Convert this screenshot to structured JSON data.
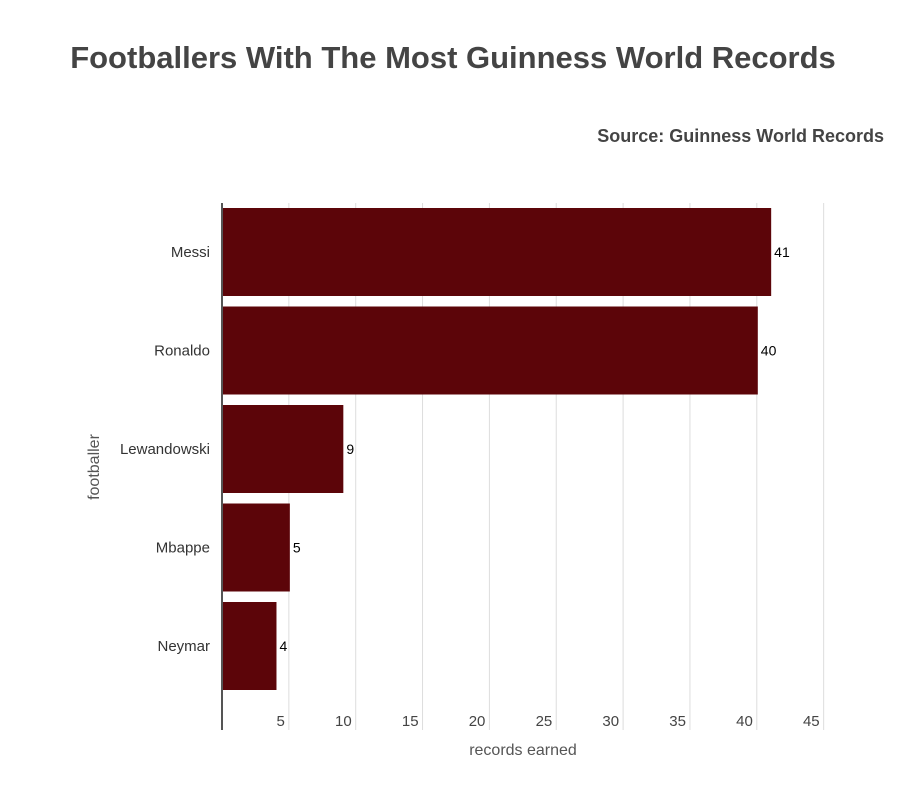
{
  "title": "Footballers With The Most Guinness World Records",
  "source": "Source: Guinness World Records",
  "colors": {
    "bar": "#5c0509",
    "grid": "#dddddd",
    "axis": "#555555",
    "text": "#444444"
  },
  "chart_data": {
    "type": "bar",
    "orientation": "horizontal",
    "categories": [
      "Messi",
      "Ronaldo",
      "Lewandowski",
      "Mbappe",
      "Neymar"
    ],
    "values": [
      41,
      40,
      9,
      5,
      4
    ],
    "data_labels": [
      "41",
      "40",
      "9",
      "5",
      "4"
    ],
    "xlabel": "records earned",
    "ylabel": "footballer",
    "xlim": [
      0,
      45
    ],
    "xticks": [
      5,
      10,
      15,
      20,
      25,
      30,
      35,
      40,
      45
    ],
    "xtick_labels": [
      "5",
      "10",
      "15",
      "20",
      "25",
      "30",
      "35",
      "40",
      "45"
    ],
    "grid": true,
    "legend": "none"
  }
}
